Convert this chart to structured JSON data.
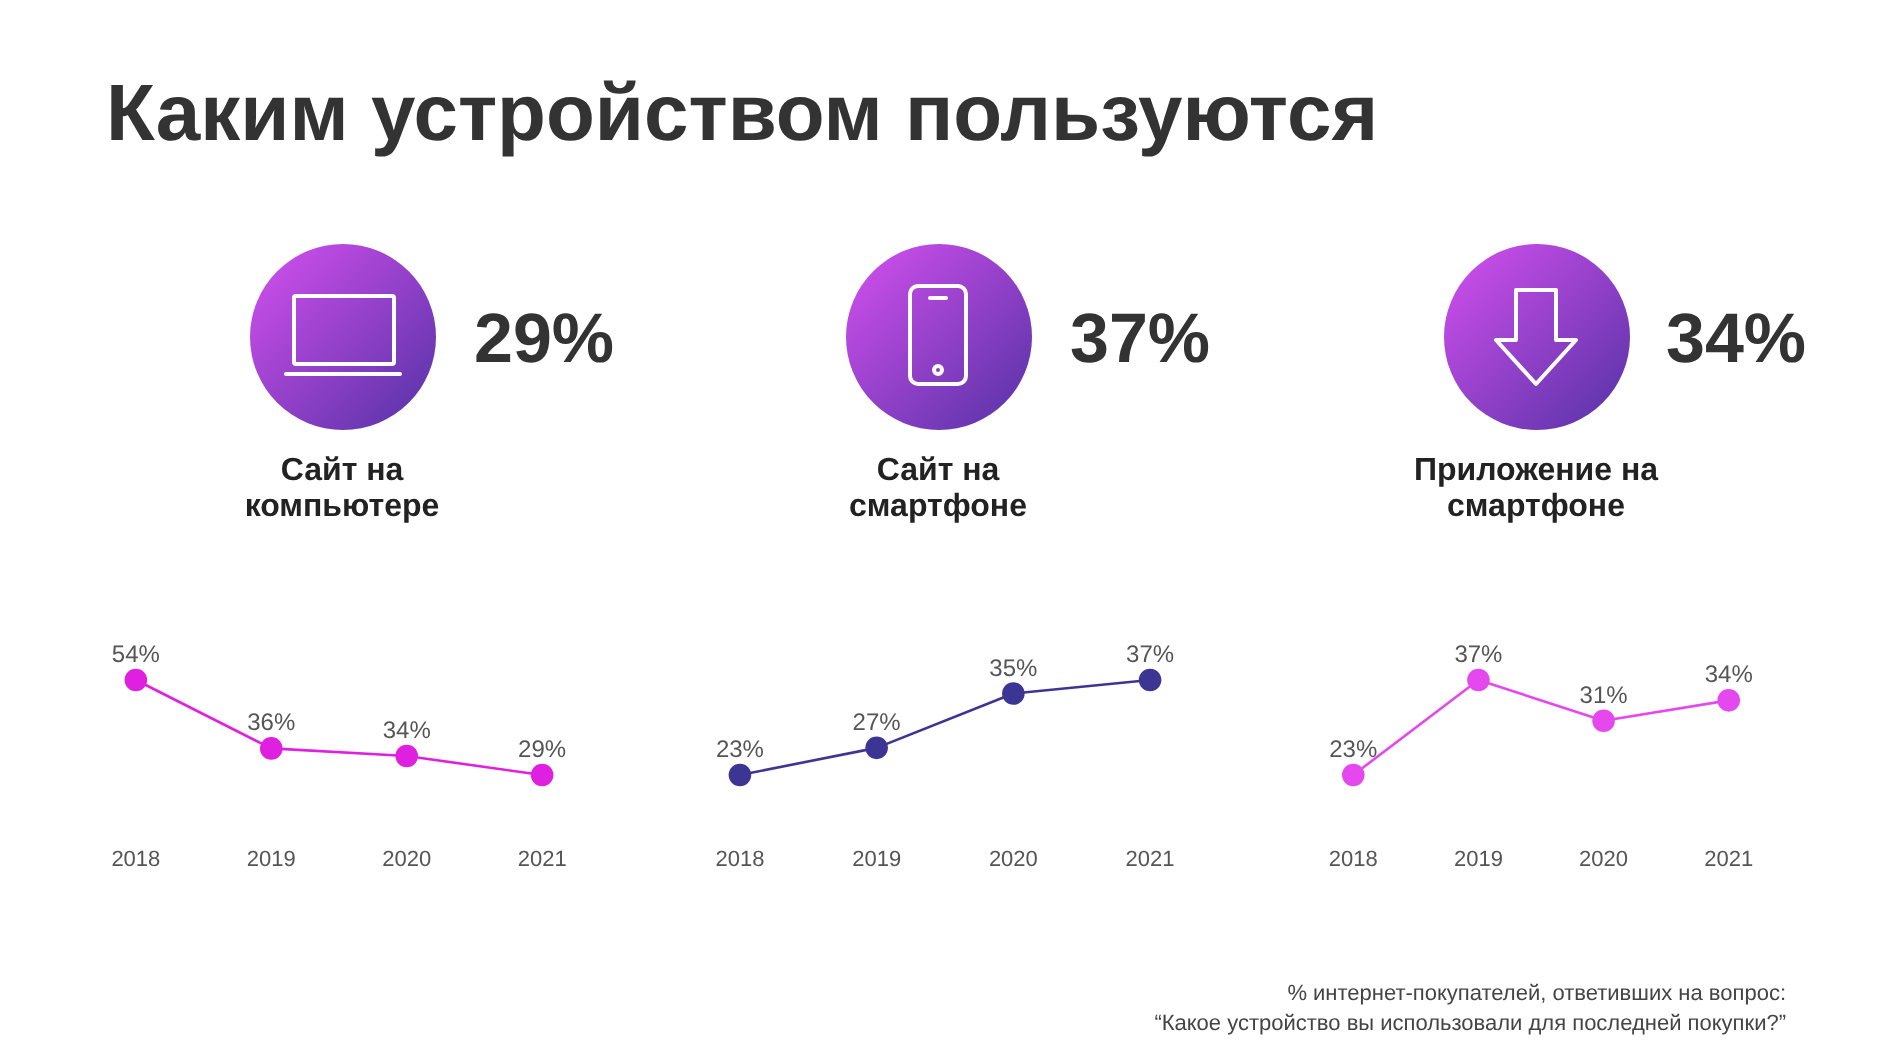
{
  "chart_data": [
    {
      "type": "other",
      "title": "Каким устройством пользуются",
      "annotations": [
        "% интернет-покупателей, ответивших на вопрос:",
        "“Какое устройство вы использовали для последней покупки?”"
      ]
    },
    {
      "type": "line",
      "title": "Сайт на компьютере",
      "annotations": [
        "29%"
      ],
      "categories": [
        "2018",
        "2019",
        "2020",
        "2021"
      ],
      "values": [
        54,
        36,
        34,
        29
      ],
      "value_labels": [
        "54%",
        "36%",
        "34%",
        "29%"
      ],
      "color": "#e020e0",
      "marker": "circle",
      "tick_labels": "x"
    },
    {
      "type": "line",
      "title": "Сайт на смартфоне",
      "annotations": [
        "37%"
      ],
      "categories": [
        "2018",
        "2019",
        "2020",
        "2021"
      ],
      "values": [
        23,
        27,
        35,
        37
      ],
      "value_labels": [
        "23%",
        "27%",
        "35%",
        "37%"
      ],
      "color": "#3d3594",
      "marker": "circle",
      "tick_labels": "x"
    },
    {
      "type": "line",
      "title": "Приложение на смартфоне",
      "annotations": [
        "34%"
      ],
      "categories": [
        "2018",
        "2019",
        "2020",
        "2021"
      ],
      "values": [
        23,
        37,
        31,
        34
      ],
      "value_labels": [
        "23%",
        "37%",
        "31%",
        "34%"
      ],
      "color": "#e448ee",
      "marker": "circle",
      "tick_labels": "x"
    }
  ]
}
